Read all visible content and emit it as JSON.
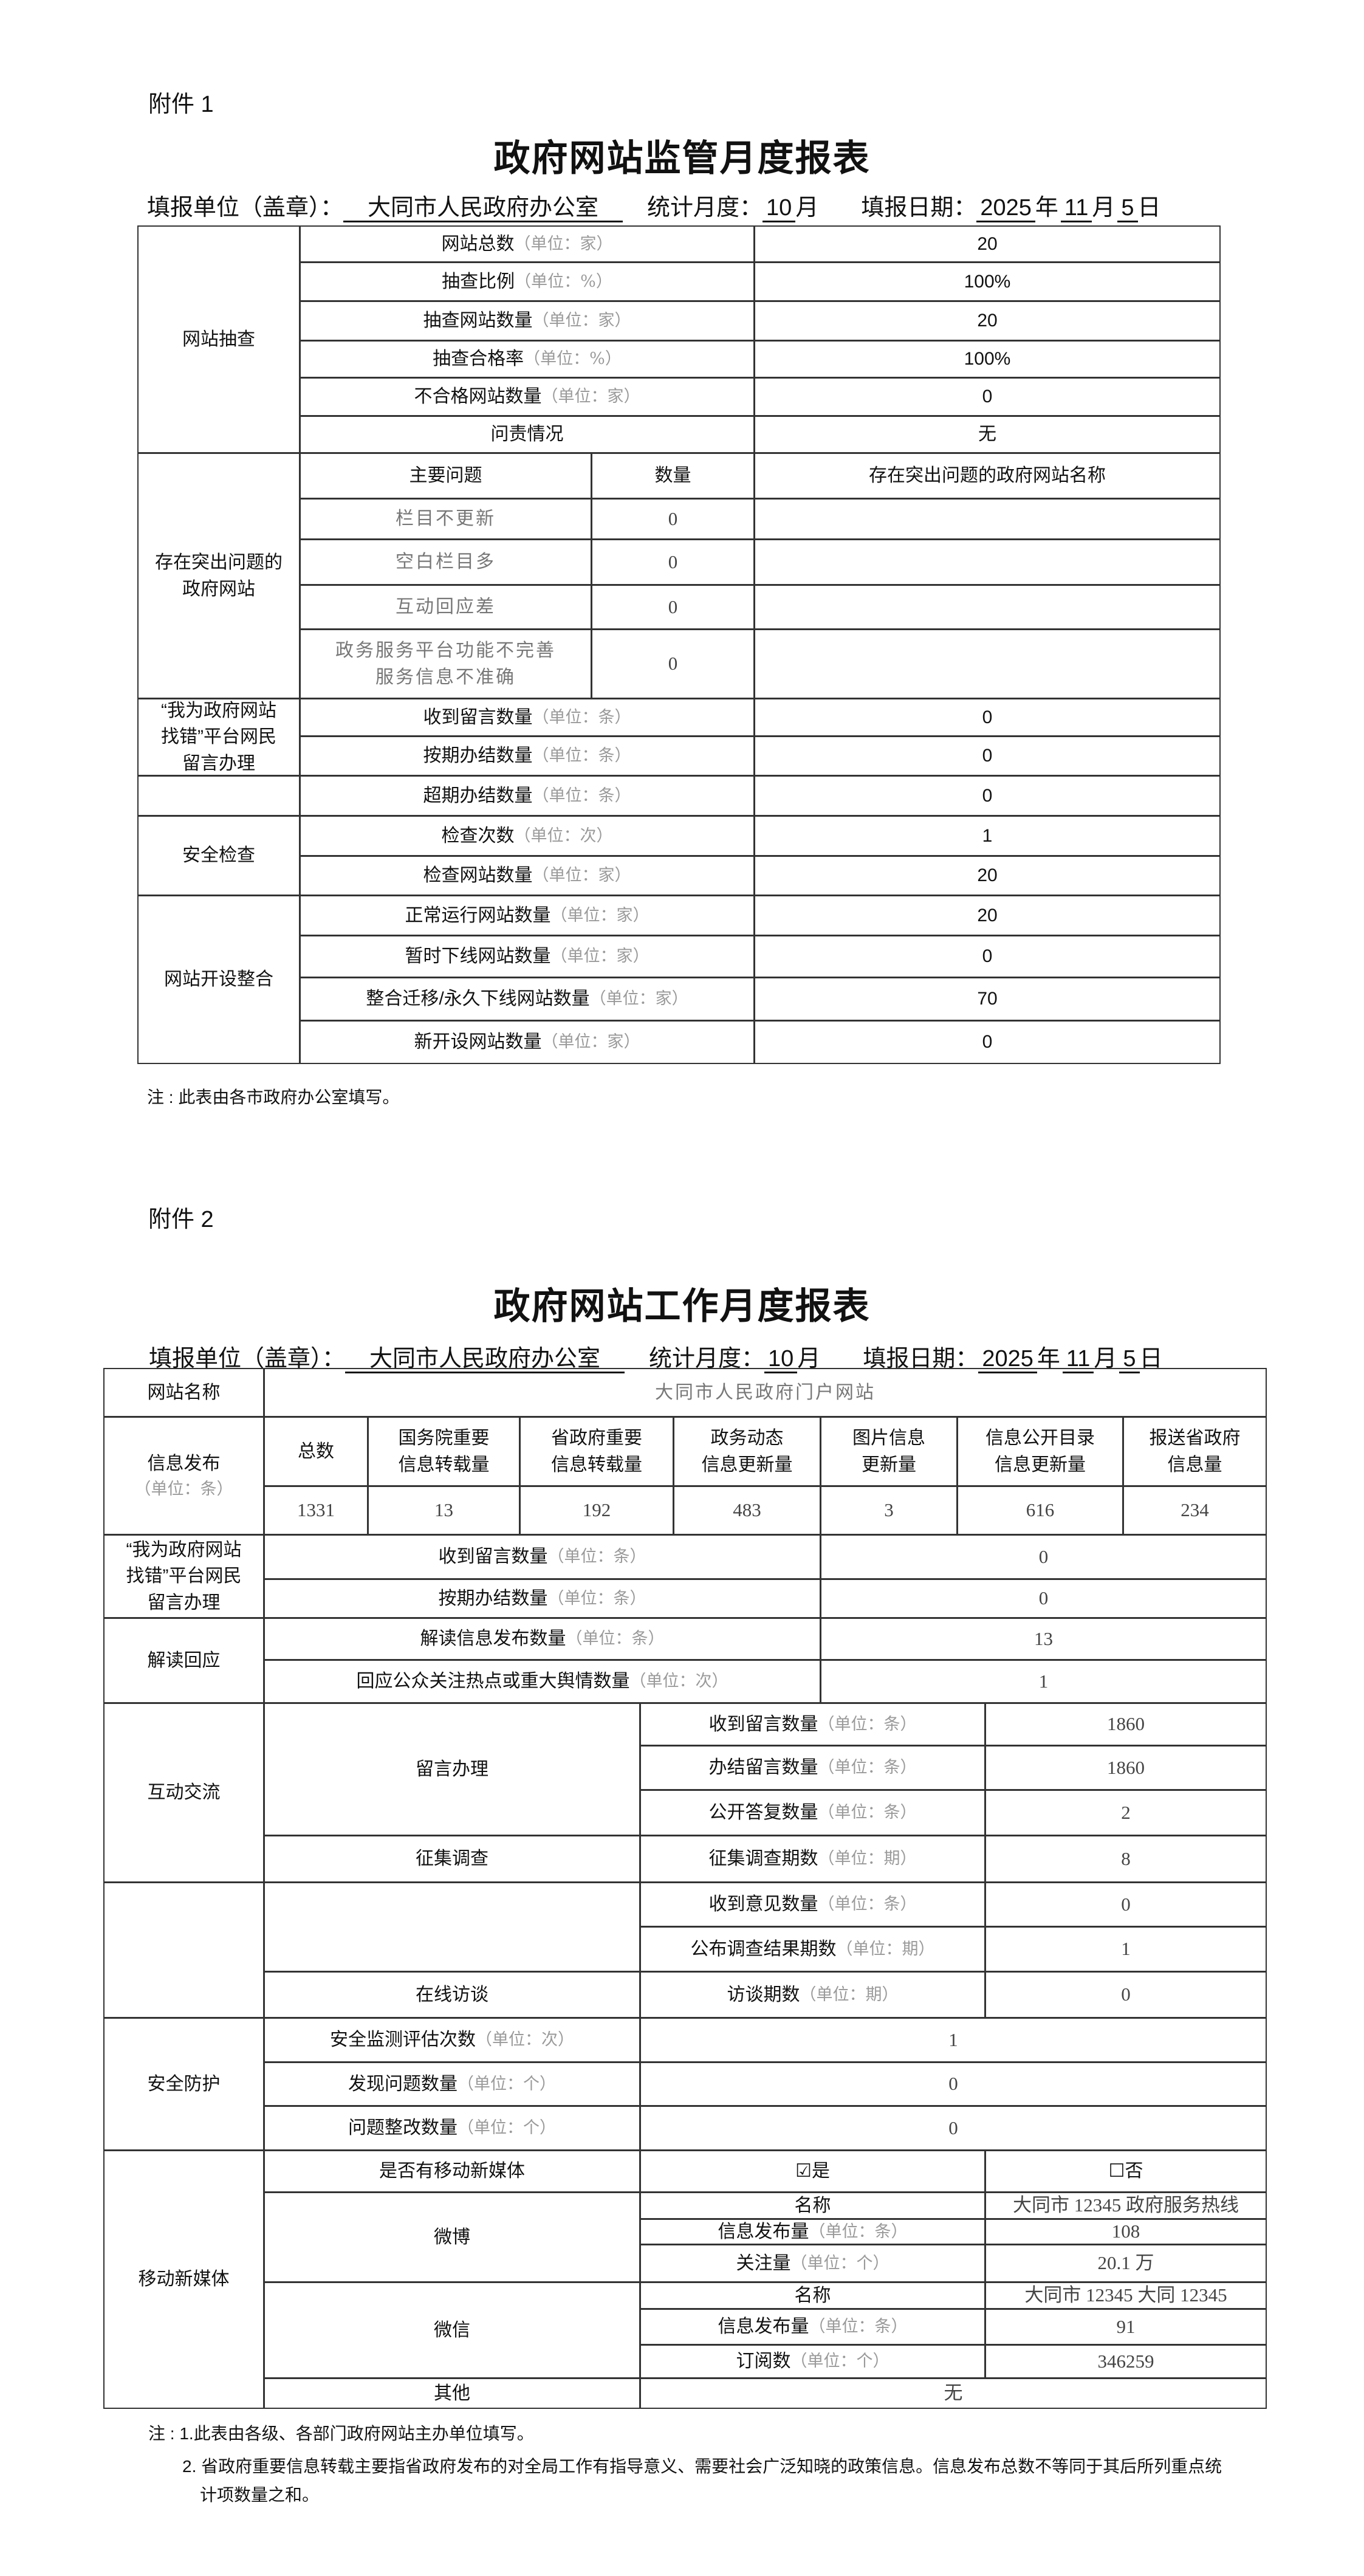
{
  "t1": {
    "attachment": "附件 1",
    "title": "政府网站监管月度报表",
    "header": {
      "unit_label": "填报单位（盖章）：",
      "unit_value": "大同市人民政府办公室",
      "month_label": "统计月度：",
      "month_value": "10",
      "month_unit": "月",
      "date_label": "填报日期：",
      "year": "2025",
      "year_unit": "年",
      "month": "11",
      "month_unit2": "月",
      "day": "5",
      "day_unit": "日"
    },
    "spot_check": {
      "title": "网站抽查",
      "rows": [
        {
          "label": "网站总数",
          "unit": "（单位：家）",
          "value": "20"
        },
        {
          "label": "抽查比例",
          "unit": "（单位：%）",
          "value": "100%"
        },
        {
          "label": "抽查网站数量",
          "unit": "（单位：家）",
          "value": "20"
        },
        {
          "label": "抽查合格率",
          "unit": "（单位：%）",
          "value": "100%"
        },
        {
          "label": "不合格网站数量",
          "unit": "（单位：家）",
          "value": "0"
        },
        {
          "label": "问责情况",
          "unit": "",
          "value": "无"
        }
      ]
    },
    "problems": {
      "title": "存在突出问题的\n政府网站",
      "headers": [
        "主要问题",
        "数量",
        "存在突出问题的政府网站名称"
      ],
      "rows": [
        {
          "label": "栏目不更新",
          "value": "0"
        },
        {
          "label": "空白栏目多",
          "value": "0"
        },
        {
          "label": "互动回应差",
          "value": "0"
        },
        {
          "label": "政务服务平台功能不完善\n服务信息不准确",
          "value": "0"
        }
      ]
    },
    "error_platform": {
      "title": "“我为政府网站\n找错”平台网民\n留言办理",
      "rows": [
        {
          "label": "收到留言数量",
          "unit": "（单位：条）",
          "value": "0"
        },
        {
          "label": "按期办结数量",
          "unit": "（单位：条）",
          "value": "0"
        }
      ]
    },
    "overdue": {
      "label": "超期办结数量",
      "unit": "（单位：条）",
      "value": "0"
    },
    "security": {
      "title": "安全检查",
      "rows": [
        {
          "label": "检查次数",
          "unit": "（单位：次）",
          "value": "1"
        },
        {
          "label": "检查网站数量",
          "unit": "（单位：家）",
          "value": "20"
        }
      ]
    },
    "consolidation": {
      "title": "网站开设整合",
      "rows": [
        {
          "label": "正常运行网站数量",
          "unit": "（单位：家）",
          "value": "20"
        },
        {
          "label": "暂时下线网站数量",
          "unit": "（单位：家）",
          "value": "0"
        },
        {
          "label": "整合迁移/永久下线网站数量",
          "unit": "（单位：家）",
          "value": "70"
        },
        {
          "label": "新开设网站数量",
          "unit": "（单位：家）",
          "value": "0"
        }
      ]
    },
    "note": "注 : 此表由各市政府办公室填写。"
  },
  "t2": {
    "attachment": "附件 2",
    "title": "政府网站工作月度报表",
    "header": {
      "unit_label": "填报单位（盖章）：",
      "unit_value": "大同市人民政府办公室",
      "month_label": "统计月度：",
      "month_value": "10",
      "month_unit": "月",
      "date_label": "填报日期：",
      "year": "2025",
      "year_unit": "年",
      "month": "11",
      "month_unit2": "月",
      "day": "5",
      "day_unit": "日"
    },
    "site_name": {
      "label": "网站名称",
      "value": "大同市人民政府门户网站"
    },
    "info": {
      "title": "信息发布",
      "unit": "（单位：条）",
      "headers": [
        "总数",
        "国务院重要\n信息转载量",
        "省政府重要\n信息转载量",
        "政务动态\n信息更新量",
        "图片信息\n更新量",
        "信息公开目录\n信息更新量",
        "报送省政府\n信息量"
      ],
      "values": [
        "1331",
        "13",
        "192",
        "483",
        "3",
        "616",
        "234"
      ]
    },
    "error_platform": {
      "title": "“我为政府网站\n找错”平台网民\n留言办理",
      "rows": [
        {
          "label": "收到留言数量",
          "unit": "（单位：条）",
          "value": "0"
        },
        {
          "label": "按期办结数量",
          "unit": "（单位：条）",
          "value": "0"
        }
      ]
    },
    "interpret": {
      "title": "解读回应",
      "rows": [
        {
          "label": "解读信息发布数量",
          "unit": "（单位：条）",
          "value": "13"
        },
        {
          "label": "回应公众关注热点或重大舆情数量",
          "unit": "（单位：次）",
          "value": "1"
        }
      ]
    },
    "interaction": {
      "title": "互动交流",
      "messages": {
        "title": "留言办理",
        "rows": [
          {
            "label": "收到留言数量",
            "unit": "（单位：条）",
            "value": "1860"
          },
          {
            "label": "办结留言数量",
            "unit": "（单位：条）",
            "value": "1860"
          },
          {
            "label": "公开答复数量",
            "unit": "（单位：条）",
            "value": "2"
          }
        ]
      },
      "survey": {
        "title": "征集调查",
        "rows": [
          {
            "label": "征集调查期数",
            "unit": "（单位：期）",
            "value": "8"
          },
          {
            "label": "收到意见数量",
            "unit": "（单位：条）",
            "value": "0"
          },
          {
            "label": "公布调查结果期数",
            "unit": "（单位：期）",
            "value": "1"
          }
        ]
      },
      "interview": {
        "title": "在线访谈",
        "label": "访谈期数",
        "unit": "（单位：期）",
        "value": "0"
      }
    },
    "protection": {
      "title": "安全防护",
      "rows": [
        {
          "label": "安全监测评估次数",
          "unit": "（单位：次）",
          "value": "1"
        },
        {
          "label": "发现问题数量",
          "unit": "（单位：个）",
          "value": "0"
        },
        {
          "label": "问题整改数量",
          "unit": "（单位：个）",
          "value": "0"
        }
      ]
    },
    "media": {
      "title": "移动新媒体",
      "has_label": "是否有移动新媒体",
      "yes": "☑是",
      "no": "☐否",
      "weibo": {
        "title": "微博",
        "rows": [
          {
            "label": "名称",
            "unit": "",
            "value": "大同市 12345 政府服务热线"
          },
          {
            "label": "信息发布量",
            "unit": "（单位：条）",
            "value": "108"
          },
          {
            "label": "关注量",
            "unit": "（单位：个）",
            "value": "20.1 万"
          }
        ]
      },
      "wechat": {
        "title": "微信",
        "rows": [
          {
            "label": "名称",
            "unit": "",
            "value": "大同市 12345  大同 12345"
          },
          {
            "label": "信息发布量",
            "unit": "（单位：条）",
            "value": "91"
          },
          {
            "label": "订阅数",
            "unit": "（单位：个）",
            "value": "346259"
          }
        ]
      },
      "other": {
        "label": "其他",
        "value": "无"
      }
    },
    "notes": [
      "注 : 1.此表由各级、各部门政府网站主办单位填写。",
      "2. 省政府重要信息转载主要指省政府发布的对全局工作有指导意义、需要社会广泛知晓的政策信息。信息发布总数不等同于其后所列重点统",
      "计项数量之和。"
    ]
  }
}
